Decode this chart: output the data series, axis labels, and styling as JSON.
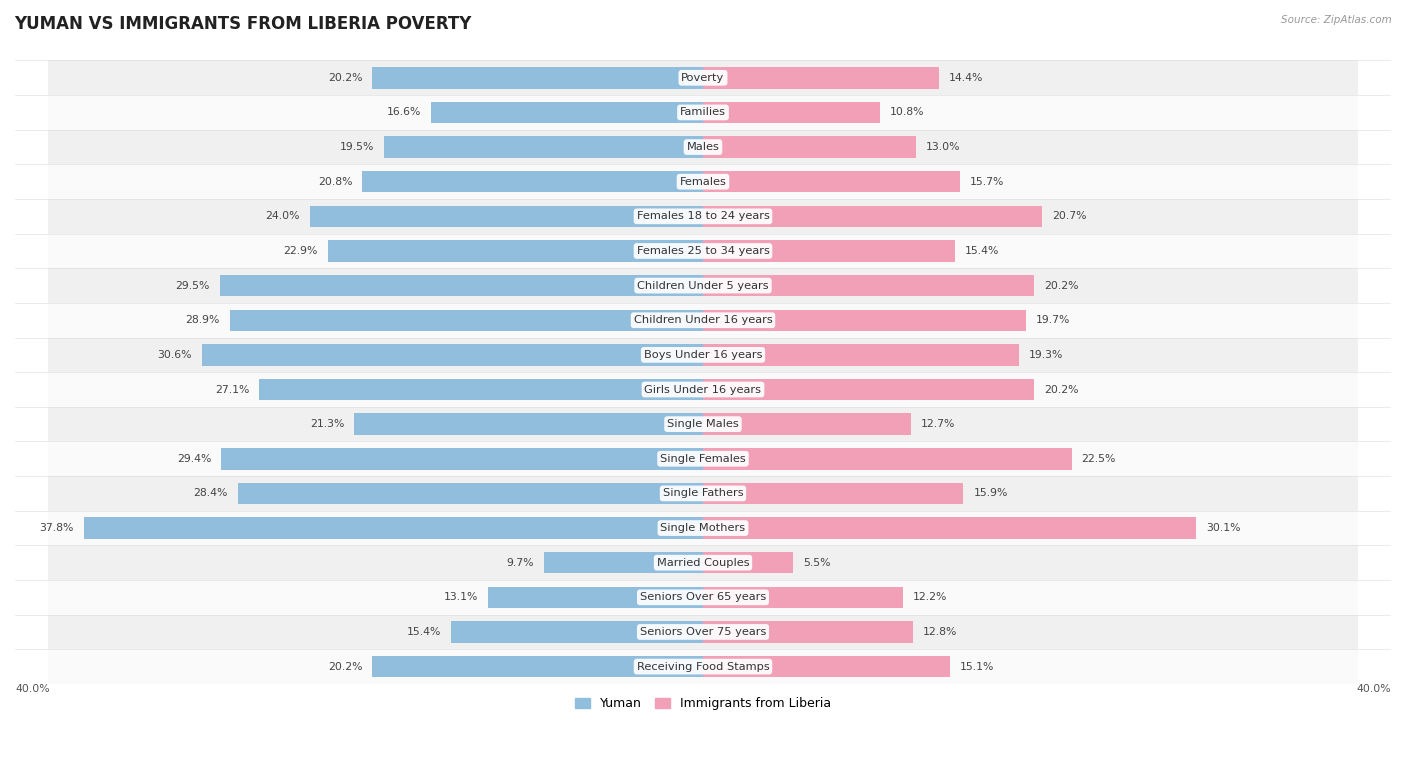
{
  "title": "YUMAN VS IMMIGRANTS FROM LIBERIA POVERTY",
  "source": "Source: ZipAtlas.com",
  "categories": [
    "Poverty",
    "Families",
    "Males",
    "Females",
    "Females 18 to 24 years",
    "Females 25 to 34 years",
    "Children Under 5 years",
    "Children Under 16 years",
    "Boys Under 16 years",
    "Girls Under 16 years",
    "Single Males",
    "Single Females",
    "Single Fathers",
    "Single Mothers",
    "Married Couples",
    "Seniors Over 65 years",
    "Seniors Over 75 years",
    "Receiving Food Stamps"
  ],
  "yuman_values": [
    20.2,
    16.6,
    19.5,
    20.8,
    24.0,
    22.9,
    29.5,
    28.9,
    30.6,
    27.1,
    21.3,
    29.4,
    28.4,
    37.8,
    9.7,
    13.1,
    15.4,
    20.2
  ],
  "liberia_values": [
    14.4,
    10.8,
    13.0,
    15.7,
    20.7,
    15.4,
    20.2,
    19.7,
    19.3,
    20.2,
    12.7,
    22.5,
    15.9,
    30.1,
    5.5,
    12.2,
    12.8,
    15.1
  ],
  "yuman_color": "#92bede",
  "liberia_color": "#f2a0b8",
  "row_color_even": "#f0f0f0",
  "row_color_odd": "#fafafa",
  "background_color": "#ffffff",
  "axis_max": 40.0,
  "bar_height": 0.62,
  "title_fontsize": 12,
  "label_fontsize": 8.2,
  "value_fontsize": 7.8,
  "legend_fontsize": 9,
  "row_border_color": "#d8d8d8"
}
